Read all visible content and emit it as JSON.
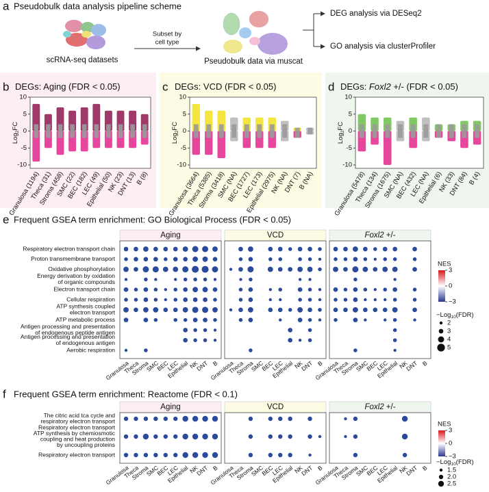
{
  "panel_a": {
    "label": "a",
    "title": "Pseudobulk data analysis pipeline scheme",
    "left_caption": "scRNA-seq datasets",
    "arrow_text": [
      "Subset by",
      "cell type"
    ],
    "middle_caption": "Pseudobulk data via muscat",
    "outputs": [
      "DEG analysis via DESeq2",
      "GO analysis via clusterProfiler"
    ]
  },
  "deg_panels": [
    {
      "type": "strip",
      "label": "b",
      "title": [
        "DEGs: Aging (FDR < 0.05)"
      ],
      "ylabel": [
        "Log",
        "2",
        "FC"
      ],
      "background": "#fdeef3",
      "up_color": "#8e1650",
      "down_color": "#e2278c",
      "na_color": "#b5b5b5",
      "categories": [
        "Granulosa (1194)",
        "Theca (31)",
        "Stroma (458)",
        "SMC (22)",
        "BEC (182)",
        "LEC (49)",
        "Epithelial (50)",
        "NK (23)",
        "DNT (13)",
        "B (8)"
      ],
      "ranges": [
        [
          -9,
          8
        ],
        [
          -5,
          5
        ],
        [
          -7,
          7
        ],
        [
          -6,
          6
        ],
        [
          -6,
          7
        ],
        [
          -5,
          8
        ],
        [
          -5,
          6
        ],
        [
          -5,
          6
        ],
        [
          -5,
          6
        ],
        [
          -4,
          5
        ]
      ],
      "significant": [
        true,
        true,
        true,
        true,
        true,
        true,
        true,
        true,
        true,
        true
      ],
      "ylim": [
        -11,
        10
      ],
      "yticks": [
        -10,
        -5,
        0,
        5,
        10
      ]
    },
    {
      "type": "strip",
      "label": "c",
      "title": [
        "DEGs: VCD (FDR < 0.05)"
      ],
      "ylabel": [
        "Log",
        "2",
        "FC"
      ],
      "background": "#fdfbe4",
      "up_color": "#f2e21c",
      "down_color": "#e2278c",
      "na_color": "#b5b5b5",
      "categories": [
        "Granulosa (3664)",
        "Theca (5385)",
        "Stroma (3418)",
        "SMC (NA)",
        "BEC (1727)",
        "LEC (173)",
        "Epithelial (2975)",
        "NK (NA)",
        "DNT (7)",
        "B (NA)"
      ],
      "ranges": [
        [
          -7,
          8
        ],
        [
          -7,
          6
        ],
        [
          -8,
          6
        ],
        [
          -3,
          4
        ],
        [
          -5,
          4
        ],
        [
          -5,
          4
        ],
        [
          -5,
          4
        ],
        [
          -3,
          3
        ],
        [
          -2,
          1
        ],
        [
          -1,
          1
        ]
      ],
      "significant": [
        true,
        true,
        true,
        false,
        true,
        true,
        true,
        false,
        true,
        false
      ],
      "ylim": [
        -11,
        10
      ],
      "yticks": [
        -10,
        -5,
        0,
        5,
        10
      ]
    },
    {
      "type": "strip",
      "label": "d",
      "title": [
        "DEGs: ",
        "Foxl2",
        " +/- (FDR < 0.05)"
      ],
      "italic": 1,
      "ylabel": [
        "Log",
        "2",
        "FC"
      ],
      "background": "#eef6ee",
      "up_color": "#6cc04a",
      "down_color": "#e2278c",
      "na_color": "#b5b5b5",
      "categories": [
        "Granulosa (5478)",
        "Theca (134)",
        "Stroma (1675)",
        "SMC (NA)",
        "BEC (432)",
        "LEC (NA)",
        "Epithelial (6)",
        "NK (33)",
        "DNT (84)",
        "B (4)"
      ],
      "ranges": [
        [
          -6,
          5
        ],
        [
          -4,
          4
        ],
        [
          -10,
          4
        ],
        [
          -3,
          3
        ],
        [
          -5,
          4
        ],
        [
          -3,
          4
        ],
        [
          -2,
          2
        ],
        [
          -3,
          2
        ],
        [
          -5,
          3
        ],
        [
          -4,
          3
        ]
      ],
      "significant": [
        true,
        true,
        true,
        false,
        true,
        false,
        true,
        true,
        true,
        true
      ],
      "ylim": [
        -11,
        10
      ],
      "yticks": [
        -10,
        -5,
        0,
        5,
        10
      ]
    }
  ],
  "gsea_panels": [
    {
      "type": "dot",
      "label": "e",
      "title": "Frequent GSEA term enrichment: GO Biological Process (FDR < 0.05)",
      "groups": [
        {
          "name": [
            "Aging"
          ],
          "header_color": "#fdeef3"
        },
        {
          "name": [
            "VCD"
          ],
          "header_color": "#fdfbe4"
        },
        {
          "name": [
            "Foxl2",
            " +/-"
          ],
          "italic": 0,
          "header_color": "#eef6ee"
        }
      ],
      "cell_types": [
        "Granulosa",
        "Theca",
        "Stroma",
        "SMC",
        "BEC",
        "LEC",
        "Epithelial",
        "NK",
        "DNT",
        "B"
      ],
      "terms": [
        [
          "Respiratory electron transport chain"
        ],
        [
          "Proton transmembrane transport"
        ],
        [
          "Oxidative phosphorylation"
        ],
        [
          "Energy derivation by oxidation",
          "of organic compounds"
        ],
        [
          "Electron transport chain"
        ],
        [
          "Cellular respiration"
        ],
        [
          "ATP synthesis coupled",
          "electron transport"
        ],
        [
          "ATP metabolic process"
        ],
        [
          "Antigen processing and presentation",
          "of endogenous peptide antigen"
        ],
        [
          "Antigen processing and presentation",
          "of endogenous antigen"
        ],
        [
          "Aerobic respiration"
        ]
      ],
      "sizes": [
        [
          [
            3,
            3,
            3.5,
            3,
            3,
            3,
            3.5,
            4,
            4,
            3.5
          ],
          [
            2.5,
            3,
            3,
            3,
            2.5,
            3,
            3,
            3.5,
            3.5,
            3
          ],
          [
            3.5,
            3,
            4,
            4,
            3.5,
            3.5,
            4,
            4.5,
            4.5,
            4
          ],
          [
            2,
            null,
            2.5,
            2,
            null,
            2,
            2.5,
            2.5,
            2.5,
            2
          ],
          [
            3,
            2.5,
            3,
            2.5,
            2,
            2.5,
            3,
            3.5,
            3.5,
            3
          ],
          [
            2.5,
            2.5,
            3,
            2.5,
            2,
            2.5,
            3,
            3,
            3,
            2.5
          ],
          [
            3.5,
            3,
            3.5,
            3.5,
            3,
            3,
            3.5,
            4,
            4,
            3.5
          ],
          [
            3,
            null,
            3,
            2.5,
            null,
            2.5,
            2.5,
            3,
            3,
            2.5
          ],
          [
            null,
            null,
            null,
            null,
            null,
            null,
            3,
            2.5,
            2.5,
            2
          ],
          [
            null,
            null,
            null,
            null,
            null,
            null,
            3,
            2.5,
            2.5,
            2
          ],
          [
            2,
            null,
            2.5,
            null,
            null,
            null,
            null,
            null,
            null,
            null
          ]
        ],
        [
          [
            null,
            3,
            3.5,
            null,
            3,
            3,
            2.5,
            3,
            3,
            2.5
          ],
          [
            null,
            2.5,
            3,
            null,
            2.5,
            2.5,
            null,
            2.5,
            2.5,
            2
          ],
          [
            2,
            3,
            4,
            null,
            3.5,
            3,
            3,
            3.5,
            3.5,
            2.5
          ],
          [
            null,
            2,
            2.5,
            null,
            null,
            null,
            null,
            2,
            2,
            null
          ],
          [
            null,
            2.5,
            3,
            null,
            2,
            2.5,
            null,
            3,
            2.5,
            2
          ],
          [
            null,
            2.5,
            3,
            null,
            2,
            2,
            null,
            2.5,
            2.5,
            2
          ],
          [
            2,
            3,
            3.5,
            null,
            3,
            3,
            2.5,
            3.5,
            3,
            2.5
          ],
          [
            null,
            2.5,
            3,
            null,
            null,
            2,
            null,
            3,
            2.5,
            2
          ],
          [
            null,
            null,
            null,
            null,
            null,
            null,
            3,
            null,
            2.5,
            null
          ],
          [
            null,
            null,
            null,
            null,
            null,
            null,
            3,
            2,
            2.5,
            null
          ],
          [
            null,
            null,
            2.5,
            null,
            null,
            null,
            null,
            null,
            null,
            null
          ]
        ],
        [
          [
            3,
            3,
            3.5,
            3,
            2.5,
            3,
            3,
            null,
            3,
            null
          ],
          [
            2.5,
            2.5,
            3,
            2.5,
            2,
            2.5,
            2.5,
            null,
            2.5,
            null
          ],
          [
            3.5,
            3,
            4,
            3.5,
            3,
            3.5,
            3.5,
            null,
            3,
            null
          ],
          [
            null,
            null,
            2.5,
            null,
            null,
            null,
            2,
            null,
            null,
            null
          ],
          [
            3,
            2.5,
            3,
            2.5,
            2,
            2.5,
            3,
            null,
            2.5,
            null
          ],
          [
            2.5,
            2.5,
            3,
            2,
            2,
            2,
            2.5,
            null,
            2.5,
            null
          ],
          [
            3,
            3,
            3.5,
            3,
            3,
            3,
            3.5,
            null,
            3,
            null
          ],
          [
            2.5,
            null,
            3,
            2,
            null,
            2,
            2.5,
            null,
            2,
            null
          ],
          [
            null,
            null,
            null,
            null,
            null,
            null,
            2.5,
            null,
            null,
            null
          ],
          [
            null,
            null,
            null,
            null,
            null,
            null,
            2.5,
            null,
            null,
            null
          ],
          [
            null,
            null,
            2.5,
            null,
            null,
            null,
            2,
            null,
            null,
            null
          ]
        ]
      ],
      "dot_color": "#2b4a9c",
      "nes_label": "NES",
      "nes_colors": [
        "#d7191c",
        "#ffffff",
        "#2b3990"
      ],
      "nes_ticks": [
        3,
        0,
        {
          "value": -3,
          "label": "−3"
        }
      ],
      "size_label": [
        "−Log",
        "10",
        "(FDR)"
      ],
      "size_ticks": [
        2,
        3,
        4,
        5
      ]
    },
    {
      "type": "dot",
      "label": "f",
      "title": "Frequent GSEA term enrichment: Reactome (FDR < 0.1)",
      "groups": [
        {
          "name": [
            "Aging"
          ],
          "header_color": "#fdeef3"
        },
        {
          "name": [
            "VCD"
          ],
          "header_color": "#fdfbe4"
        },
        {
          "name": [
            "Foxl2",
            " +/-"
          ],
          "italic": 0,
          "header_color": "#eef6ee"
        }
      ],
      "cell_types": [
        "Granulosa",
        "Theca",
        "Stroma",
        "SMC",
        "BEC",
        "LEC",
        "Epithelial",
        "NK",
        "DNT",
        "B"
      ],
      "terms": [
        [
          "The citric acid tca cycle and",
          "respiratory electron transport"
        ],
        [
          "Respiratory electron transport",
          "ATP synthesis by chemiosmotic",
          "coupling and heat production",
          "by uncoupling proteins"
        ],
        [
          "Respiratory electron transport"
        ]
      ],
      "sizes": [
        [
          [
            2,
            2,
            2,
            2,
            2,
            2,
            2.5,
            2.5,
            2.5,
            2.5
          ],
          [
            2,
            2,
            2.5,
            2,
            2,
            2,
            2.5,
            2.5,
            2.5,
            2.5
          ],
          [
            2,
            2,
            2,
            2,
            2,
            2,
            2.5,
            2.5,
            2.5,
            2.5
          ]
        ],
        [
          [
            null,
            null,
            2,
            null,
            2,
            2,
            2,
            null,
            2,
            null
          ],
          [
            null,
            null,
            2,
            null,
            2,
            2,
            2,
            null,
            2,
            1.5
          ],
          [
            null,
            null,
            2,
            null,
            2,
            2,
            2,
            null,
            1.5,
            null
          ]
        ],
        [
          [
            null,
            1.5,
            2,
            null,
            null,
            null,
            null,
            2.5,
            null,
            null
          ],
          [
            null,
            1.5,
            2,
            null,
            null,
            null,
            null,
            2.5,
            null,
            null
          ],
          [
            null,
            null,
            2,
            null,
            null,
            null,
            null,
            2,
            null,
            null
          ]
        ]
      ],
      "dot_color": "#2b4a9c",
      "nes_label": "NES",
      "nes_colors": [
        "#d7191c",
        "#ffffff",
        "#2b3990"
      ],
      "nes_ticks": [
        3,
        0,
        {
          "value": -3,
          "label": "−3"
        }
      ],
      "size_label": [
        "−Log",
        "10",
        "(FDR)"
      ],
      "size_ticks": [
        1.5,
        {
          "value": 2,
          "label": "2.0"
        },
        2.5
      ]
    }
  ]
}
